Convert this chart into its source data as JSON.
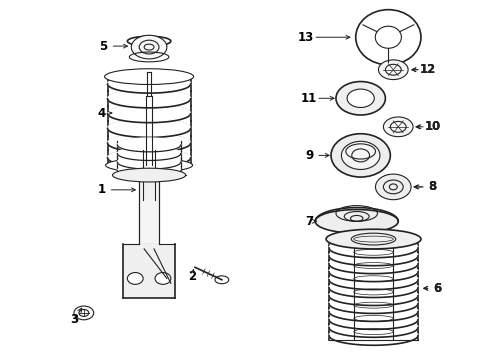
{
  "background_color": "#ffffff",
  "line_color": "#222222",
  "label_color": "#000000",
  "figsize": [
    4.89,
    3.6
  ],
  "dpi": 100
}
